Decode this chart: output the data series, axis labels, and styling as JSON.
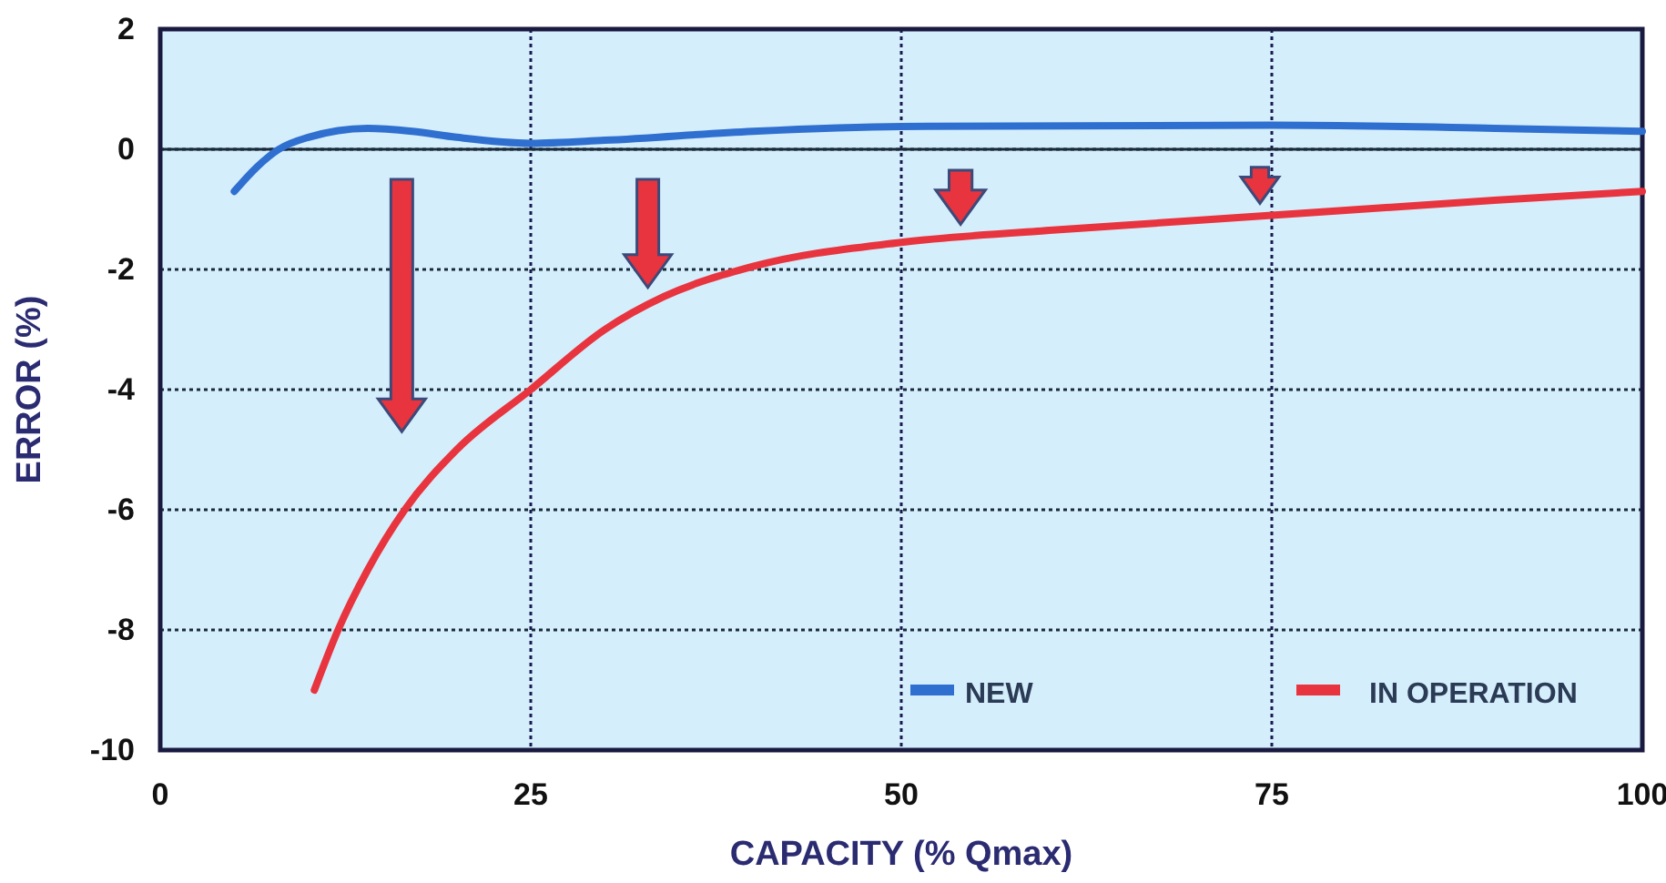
{
  "chart_data": {
    "type": "line",
    "xlabel": "CAPACITY (% Qmax)",
    "ylabel": "ERROR (%)",
    "xlim": [
      0,
      100
    ],
    "xticks": [
      0,
      25,
      50,
      75,
      100
    ],
    "ylim": [
      -10,
      2
    ],
    "yticks": [
      -10,
      -8,
      -6,
      -4,
      -2,
      0,
      2
    ],
    "grid": true,
    "legend": "bottom right",
    "line_style": "solid",
    "marker": "none",
    "ref_lines": [
      {
        "axis": "y",
        "value": 0,
        "color": "#1a2a3a",
        "line_style": "solid"
      }
    ],
    "series": [
      {
        "name": "NEW",
        "color": "#2f6fd0",
        "x": [
          5,
          6.5,
          8,
          10,
          14,
          17,
          20,
          25,
          30,
          40,
          50,
          75,
          90,
          100
        ],
        "values": [
          -0.7,
          -0.3,
          0,
          0.2,
          0.35,
          0.3,
          0.2,
          0.1,
          0.15,
          0.3,
          0.38,
          0.4,
          0.35,
          0.3
        ]
      },
      {
        "name": "IN OPERATION",
        "color": "#e8343e",
        "x": [
          10.4,
          12,
          14,
          16.5,
          20,
          25,
          30,
          34,
          40,
          50,
          60,
          75,
          90,
          100
        ],
        "values": [
          -9,
          -8,
          -7,
          -6,
          -5,
          -4,
          -3,
          -2.45,
          -1.95,
          -1.55,
          -1.35,
          -1.1,
          -0.85,
          -0.7
        ]
      }
    ]
  }
}
